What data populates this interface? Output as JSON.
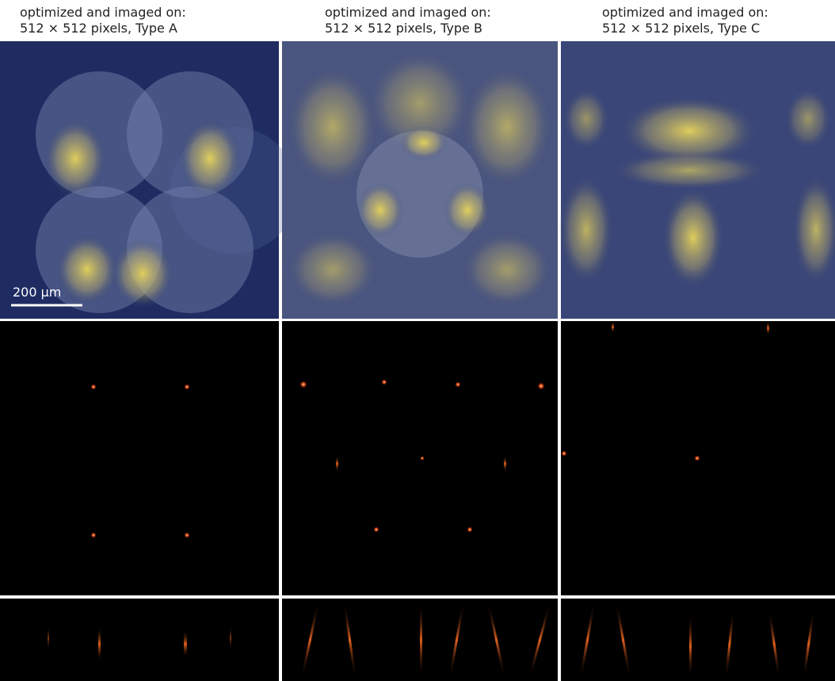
{
  "columns": [
    {
      "header": [
        "optimized and imaged on:",
        "512 × 512 pixels, Type A"
      ]
    },
    {
      "header": [
        "optimized and imaged on:",
        "512 × 512 pixels, Type B"
      ]
    },
    {
      "header": [
        "optimized and imaged on:",
        "512 × 512 pixels, Type C"
      ]
    }
  ],
  "scale_bar": "200 µm"
}
